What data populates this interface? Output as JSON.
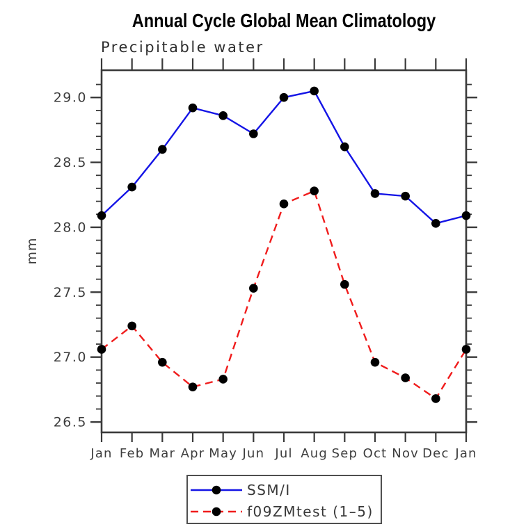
{
  "header": {
    "title": "Annual Cycle Global Mean Climatology",
    "subtitle": "Precipitable water"
  },
  "chart_data": {
    "type": "line",
    "title": "Annual Cycle Global Mean Climatology",
    "subtitle": "Precipitable water",
    "xlabel": "",
    "ylabel": "mm",
    "categories": [
      "Jan",
      "Feb",
      "Mar",
      "Apr",
      "May",
      "Jun",
      "Jul",
      "Aug",
      "Sep",
      "Oct",
      "Nov",
      "Dec",
      "Jan"
    ],
    "series": [
      {
        "name": "SSM/I",
        "color": "#1414e6",
        "line_style": "solid",
        "marker": "circle",
        "marker_color": "#000000",
        "values": [
          28.09,
          28.31,
          28.6,
          28.92,
          28.86,
          28.72,
          29.0,
          29.05,
          28.62,
          28.26,
          28.24,
          28.03,
          28.09
        ]
      },
      {
        "name": "f09ZMtest (1–5)",
        "color": "#f01c1c",
        "line_style": "dashed",
        "marker": "circle",
        "marker_color": "#000000",
        "values": [
          27.06,
          27.24,
          26.96,
          26.77,
          26.83,
          27.53,
          28.18,
          28.28,
          27.56,
          26.96,
          26.84,
          26.68,
          27.06
        ]
      }
    ],
    "ylim": [
      26.42,
      29.21
    ],
    "yticks_major": [
      26.5,
      27.0,
      27.5,
      28.0,
      28.5,
      29.0
    ],
    "ytick_labels": [
      "26.5",
      "27.0",
      "27.5",
      "28.0",
      "28.5",
      "29.0"
    ],
    "ytick_minor_step": 0.1,
    "grid": false,
    "legend_position": "bottom-center"
  },
  "colors": {
    "axis": "#3a3a3a",
    "tick_label": "#3d3d3d",
    "marker": "#000000",
    "legend_border": "#4f4f4f",
    "background": "#ffffff"
  }
}
